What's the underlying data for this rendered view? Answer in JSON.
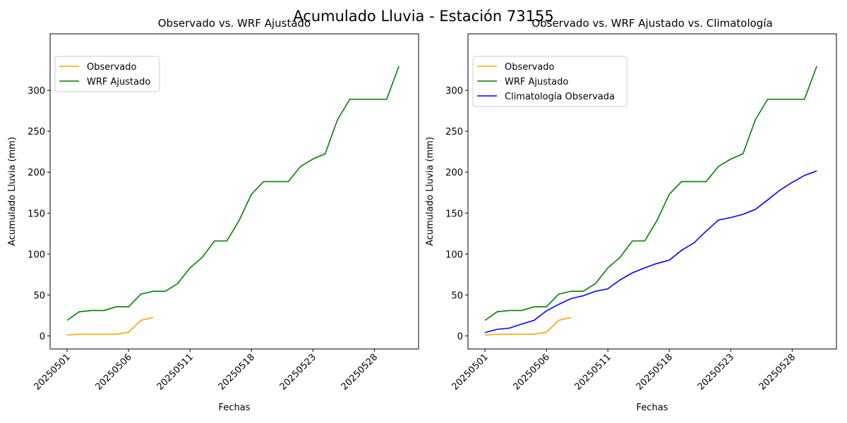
{
  "title": "Acumulado Lluvia - Estación 73155",
  "chart_data": [
    {
      "type": "line",
      "title": "Observado vs. WRF Ajustado",
      "xlabel": "Fechas",
      "ylabel": "Acumulado Lluvia (mm)",
      "categories": [
        "20250501",
        null,
        null,
        null,
        null,
        "20250506",
        null,
        null,
        null,
        null,
        "20250511",
        null,
        null,
        null,
        null,
        "20250518",
        null,
        null,
        null,
        null,
        "20250523",
        null,
        null,
        null,
        null,
        "20250528",
        null,
        null
      ],
      "series": [
        {
          "name": "Observado",
          "color": "orange",
          "values": [
            1,
            2,
            2,
            2,
            2,
            4.5,
            19,
            22.5,
            null,
            null,
            null,
            null,
            null,
            null,
            null,
            null,
            null,
            null,
            null,
            null,
            null,
            null,
            null,
            null,
            null,
            null,
            null,
            null
          ]
        },
        {
          "name": "WRF Ajustado",
          "color": "green",
          "values": [
            19,
            29.5,
            31,
            31,
            35.5,
            35.5,
            51,
            54.5,
            54.5,
            64,
            83,
            96,
            116,
            116,
            141,
            173,
            188.5,
            188.5,
            188.5,
            207,
            216,
            222.5,
            264,
            289,
            289,
            289,
            289,
            329.5
          ]
        }
      ],
      "ylim": [
        -16,
        369
      ],
      "yticks": [
        0,
        50,
        100,
        150,
        200,
        250,
        300
      ],
      "legend": "upper left"
    },
    {
      "type": "line",
      "title": "Observado vs. WRF Ajustado vs. Climatología",
      "xlabel": "Fechas",
      "ylabel": "Acumulado Lluvia (mm)",
      "categories": [
        "20250501",
        null,
        null,
        null,
        null,
        "20250506",
        null,
        null,
        null,
        null,
        "20250511",
        null,
        null,
        null,
        null,
        "20250518",
        null,
        null,
        null,
        null,
        "20250523",
        null,
        null,
        null,
        null,
        "20250528",
        null,
        null
      ],
      "series": [
        {
          "name": "Observado",
          "color": "orange",
          "values": [
            1,
            2,
            2,
            2,
            2,
            4.5,
            19,
            22.5,
            null,
            null,
            null,
            null,
            null,
            null,
            null,
            null,
            null,
            null,
            null,
            null,
            null,
            null,
            null,
            null,
            null,
            null,
            null,
            null
          ]
        },
        {
          "name": "WRF Ajustado",
          "color": "green",
          "values": [
            19,
            29.5,
            31,
            31,
            35.5,
            35.5,
            51,
            54.5,
            54.5,
            64,
            83,
            96,
            116,
            116,
            141,
            173,
            188.5,
            188.5,
            188.5,
            207,
            216,
            222.5,
            264,
            289,
            289,
            289,
            289,
            329.5
          ]
        },
        {
          "name": "Climatología Observada",
          "color": "blue",
          "values": [
            4,
            8,
            9.5,
            14.5,
            19,
            30.5,
            38.5,
            45.5,
            49,
            54.5,
            57.5,
            68.5,
            77,
            83,
            88.5,
            92.5,
            104.5,
            113.5,
            128,
            141.5,
            144.5,
            148.5,
            154.5,
            166,
            178,
            187.5,
            196,
            201.5
          ]
        }
      ],
      "ylim": [
        -16,
        369
      ],
      "yticks": [
        0,
        50,
        100,
        150,
        200,
        250,
        300
      ],
      "legend": "upper left"
    }
  ]
}
